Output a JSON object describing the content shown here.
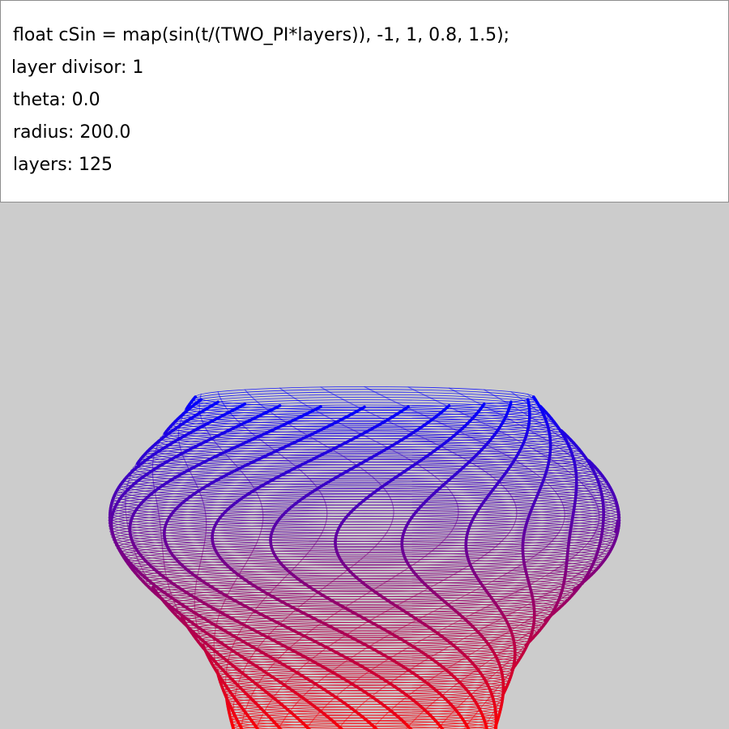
{
  "info_panel": {
    "code_line": "float cSin = map(sin(t/(TWO_PI*layers)), -1, 1, 0.8, 1.5);",
    "layer_divisor": "layer divisor: 1",
    "theta": "theta: 0.0",
    "radius": "radius: 200.0",
    "layers": "layers: 125"
  },
  "colors": {
    "panel_background": "#ffffff",
    "canvas_background": "#cccccc",
    "bottom_color": "#ff0000",
    "top_color": "#0000ff"
  }
}
